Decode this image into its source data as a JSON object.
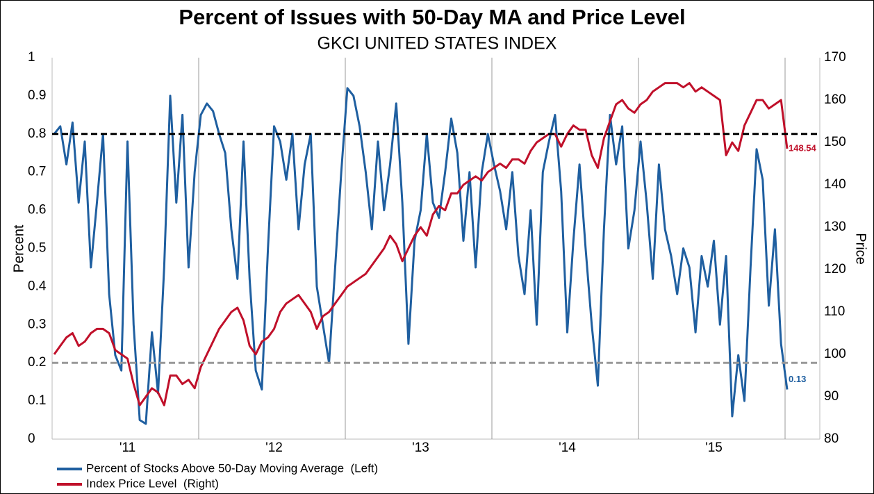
{
  "chart_data": {
    "type": "line",
    "title": "Percent of Issues with 50-Day MA and Price Level",
    "subtitle": "GKCI UNITED STATES INDEX",
    "y_label": "Percent",
    "y2_label": "Price",
    "categories": [
      null,
      null,
      null,
      null,
      null,
      null,
      null,
      null,
      null,
      null,
      null,
      null,
      "'11",
      null,
      null,
      null,
      null,
      null,
      null,
      null,
      null,
      null,
      null,
      null,
      null,
      null,
      null,
      null,
      null,
      null,
      null,
      null,
      null,
      null,
      null,
      null,
      "'12",
      null,
      null,
      null,
      null,
      null,
      null,
      null,
      null,
      null,
      null,
      null,
      null,
      null,
      null,
      null,
      null,
      null,
      null,
      null,
      null,
      null,
      null,
      null,
      "'13",
      null,
      null,
      null,
      null,
      null,
      null,
      null,
      null,
      null,
      null,
      null,
      null,
      null,
      null,
      null,
      null,
      null,
      null,
      null,
      null,
      null,
      null,
      null,
      "'14",
      null,
      null,
      null,
      null,
      null,
      null,
      null,
      null,
      null,
      null,
      null,
      null,
      null,
      null,
      null,
      null,
      null,
      null,
      null,
      null,
      null,
      null,
      null,
      "'15",
      null,
      null,
      null,
      null,
      null,
      null,
      null,
      null,
      null,
      null,
      null,
      null
    ],
    "series": [
      {
        "name": "Percent of Stocks Above 50-Day Moving Average  (Left)",
        "color": "#1f5fa0",
        "axis": "y",
        "values": [
          0.8,
          0.82,
          0.72,
          0.83,
          0.62,
          0.78,
          0.45,
          0.62,
          0.8,
          0.38,
          0.22,
          0.18,
          0.78,
          0.3,
          0.05,
          0.04,
          0.28,
          0.12,
          0.45,
          0.9,
          0.62,
          0.85,
          0.45,
          0.7,
          0.85,
          0.88,
          0.86,
          0.8,
          0.75,
          0.55,
          0.42,
          0.78,
          0.42,
          0.18,
          0.13,
          0.5,
          0.82,
          0.78,
          0.68,
          0.8,
          0.55,
          0.72,
          0.8,
          0.4,
          0.3,
          0.2,
          0.45,
          0.7,
          0.92,
          0.9,
          0.82,
          0.7,
          0.55,
          0.78,
          0.6,
          0.72,
          0.88,
          0.62,
          0.25,
          0.52,
          0.6,
          0.8,
          0.62,
          0.58,
          0.7,
          0.84,
          0.75,
          0.52,
          0.7,
          0.45,
          0.7,
          0.8,
          0.72,
          0.65,
          0.55,
          0.7,
          0.48,
          0.38,
          0.6,
          0.3,
          0.7,
          0.78,
          0.85,
          0.65,
          0.28,
          0.52,
          0.72,
          0.5,
          0.3,
          0.14,
          0.55,
          0.85,
          0.72,
          0.82,
          0.5,
          0.6,
          0.78,
          0.62,
          0.42,
          0.72,
          0.55,
          0.48,
          0.38,
          0.5,
          0.45,
          0.28,
          0.48,
          0.4,
          0.52,
          0.3,
          0.48,
          0.06,
          0.22,
          0.1,
          0.45,
          0.76,
          0.68,
          0.35,
          0.55,
          0.25,
          0.13
        ]
      },
      {
        "name": "Index Price Level  (Right)",
        "color": "#c0102a",
        "axis": "y2",
        "values": [
          100,
          102,
          104,
          105,
          102,
          103,
          105,
          106,
          106,
          105,
          101,
          100,
          99,
          93,
          88,
          90,
          92,
          91,
          88,
          95,
          95,
          93,
          94,
          92,
          97,
          100,
          103,
          106,
          108,
          110,
          111,
          108,
          102,
          100,
          103,
          104,
          106,
          110,
          112,
          113,
          114,
          112,
          110,
          106,
          109,
          110,
          112,
          114,
          116,
          117,
          118,
          119,
          121,
          123,
          125,
          128,
          126,
          122,
          125,
          128,
          130,
          128,
          133,
          135,
          134,
          138,
          138,
          140,
          141,
          142,
          141,
          143,
          144,
          145,
          144,
          146,
          146,
          145,
          148,
          150,
          151,
          152,
          152,
          149,
          152,
          154,
          153,
          153,
          147,
          144,
          151,
          155,
          159,
          160,
          158,
          157,
          159,
          160,
          162,
          163,
          164,
          164,
          164,
          163,
          164,
          162,
          163,
          162,
          161,
          160,
          147,
          150,
          148,
          154,
          157,
          160,
          160,
          158,
          159,
          160,
          148.54
        ]
      }
    ],
    "ylim": [
      0,
      1
    ],
    "yticks": [
      0,
      0.1,
      0.2,
      0.3,
      0.4,
      0.5,
      0.6,
      0.7,
      0.8,
      0.9,
      1
    ],
    "y2lim": [
      80,
      170
    ],
    "y2ticks": [
      80,
      90,
      100,
      110,
      120,
      130,
      140,
      150,
      160,
      170
    ],
    "hlines": [
      {
        "value": 0.8,
        "color": "#000000"
      },
      {
        "value": 0.2,
        "color": "#999999"
      }
    ],
    "legend": "bottom-left"
  }
}
